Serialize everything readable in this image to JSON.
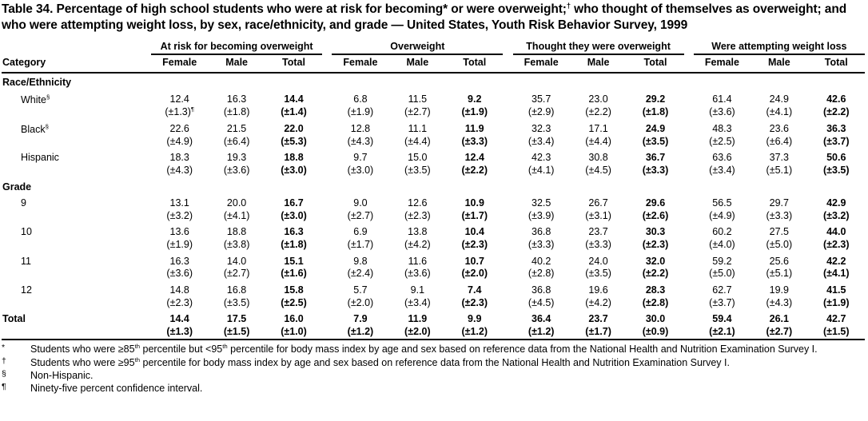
{
  "title": {
    "parts": [
      {
        "t": "Table 34. Percentage of high school students who were at risk for becoming* or were overweight;"
      },
      {
        "sup": "†"
      },
      {
        "t": " who thought of themselves as overweight; and who were attempting weight loss, by sex, race/ethnicity, and grade — United States, Youth Risk Behavior Survey, 1999"
      }
    ]
  },
  "table": {
    "category_header": "Category",
    "groups": [
      {
        "label": "At risk for becoming overweight"
      },
      {
        "label": "Overweight"
      },
      {
        "label": "Thought they were overweight"
      },
      {
        "label": "Were attempting weight loss"
      }
    ],
    "sub_columns": [
      "Female",
      "Male",
      "Total"
    ],
    "rows": [
      {
        "type": "section",
        "label": "Race/Ethnicity"
      },
      {
        "type": "data",
        "label": "White",
        "label_sup": "§",
        "values": [
          "12.4",
          "16.3",
          "14.4",
          "6.8",
          "11.5",
          "9.2",
          "35.7",
          "23.0",
          "29.2",
          "61.4",
          "24.9",
          "42.6"
        ],
        "cis": [
          {
            "t": "(±1.3)",
            "sup": "¶"
          },
          "(±1.8)",
          "(±1.4)",
          "(±1.9)",
          "(±2.7)",
          "(±1.9)",
          "(±2.9)",
          "(±2.2)",
          "(±1.8)",
          "(±3.6)",
          "(±4.1)",
          "(±2.2)"
        ]
      },
      {
        "type": "data",
        "label": "Black",
        "label_sup": "§",
        "values": [
          "22.6",
          "21.5",
          "22.0",
          "12.8",
          "11.1",
          "11.9",
          "32.3",
          "17.1",
          "24.9",
          "48.3",
          "23.6",
          "36.3"
        ],
        "cis": [
          "(±4.9)",
          "(±6.4)",
          "(±5.3)",
          "(±4.3)",
          "(±4.4)",
          "(±3.3)",
          "(±3.4)",
          "(±4.4)",
          "(±3.5)",
          "(±2.5)",
          "(±6.4)",
          "(±3.7)"
        ]
      },
      {
        "type": "data",
        "label": "Hispanic",
        "values": [
          "18.3",
          "19.3",
          "18.8",
          "9.7",
          "15.0",
          "12.4",
          "42.3",
          "30.8",
          "36.7",
          "63.6",
          "37.3",
          "50.6"
        ],
        "cis": [
          "(±4.3)",
          "(±3.6)",
          "(±3.0)",
          "(±3.0)",
          "(±3.5)",
          "(±2.2)",
          "(±4.1)",
          "(±4.5)",
          "(±3.3)",
          "(±3.4)",
          "(±5.1)",
          "(±3.5)"
        ]
      },
      {
        "type": "section",
        "label": "Grade"
      },
      {
        "type": "data",
        "label": "9",
        "values": [
          "13.1",
          "20.0",
          "16.7",
          "9.0",
          "12.6",
          "10.9",
          "32.5",
          "26.7",
          "29.6",
          "56.5",
          "29.7",
          "42.9"
        ],
        "cis": [
          "(±3.2)",
          "(±4.1)",
          "(±3.0)",
          "(±2.7)",
          "(±2.3)",
          "(±1.7)",
          "(±3.9)",
          "(±3.1)",
          "(±2.6)",
          "(±4.9)",
          "(±3.3)",
          "(±3.2)"
        ]
      },
      {
        "type": "data",
        "label": "10",
        "values": [
          "13.6",
          "18.8",
          "16.3",
          "6.9",
          "13.8",
          "10.4",
          "36.8",
          "23.7",
          "30.3",
          "60.2",
          "27.5",
          "44.0"
        ],
        "cis": [
          "(±1.9)",
          "(±3.8)",
          "(±1.8)",
          "(±1.7)",
          "(±4.2)",
          "(±2.3)",
          "(±3.3)",
          "(±3.3)",
          "(±2.3)",
          "(±4.0)",
          "(±5.0)",
          "(±2.3)"
        ]
      },
      {
        "type": "data",
        "label": "11",
        "values": [
          "16.3",
          "14.0",
          "15.1",
          "9.8",
          "11.6",
          "10.7",
          "40.2",
          "24.0",
          "32.0",
          "59.2",
          "25.6",
          "42.2"
        ],
        "cis": [
          "(±3.6)",
          "(±2.7)",
          "(±1.6)",
          "(±2.4)",
          "(±3.6)",
          "(±2.0)",
          "(±2.8)",
          "(±3.5)",
          "(±2.2)",
          "(±5.0)",
          "(±5.1)",
          "(±4.1)"
        ]
      },
      {
        "type": "data",
        "label": "12",
        "values": [
          "14.8",
          "16.8",
          "15.8",
          "5.7",
          "9.1",
          "7.4",
          "36.8",
          "19.6",
          "28.3",
          "62.7",
          "19.9",
          "41.5"
        ],
        "cis": [
          "(±2.3)",
          "(±3.5)",
          "(±2.5)",
          "(±2.0)",
          "(±3.4)",
          "(±2.3)",
          "(±4.5)",
          "(±4.2)",
          "(±2.8)",
          "(±3.7)",
          "(±4.3)",
          "(±1.9)"
        ]
      },
      {
        "type": "data",
        "label": "Total",
        "bold": true,
        "values": [
          "14.4",
          "17.5",
          "16.0",
          "7.9",
          "11.9",
          "9.9",
          "36.4",
          "23.7",
          "30.0",
          "59.4",
          "26.1",
          "42.7"
        ],
        "cis": [
          "(±1.3)",
          "(±1.5)",
          "(±1.0)",
          "(±1.2)",
          "(±2.0)",
          "(±1.2)",
          "(±1.2)",
          "(±1.7)",
          "(±0.9)",
          "(±2.1)",
          "(±2.7)",
          "(±1.5)"
        ]
      }
    ]
  },
  "footnotes": [
    {
      "marker": "*",
      "parts": [
        {
          "t": "Students who were ≥85"
        },
        {
          "sup": "th"
        },
        {
          "t": " percentile but <95"
        },
        {
          "sup": "th"
        },
        {
          "t": " percentile for body mass index by age and sex based on reference data from the National Health and Nutrition Examination Survey I."
        }
      ]
    },
    {
      "marker": "†",
      "parts": [
        {
          "t": "Students who were ≥95"
        },
        {
          "sup": "th"
        },
        {
          "t": " percentile for body mass index by age and sex based on reference data from the National Health and Nutrition Examination Survey I."
        }
      ]
    },
    {
      "marker": "§",
      "parts": [
        {
          "t": "Non-Hispanic."
        }
      ]
    },
    {
      "marker": "¶",
      "parts": [
        {
          "t": "Ninety-five percent confidence interval."
        }
      ]
    }
  ]
}
